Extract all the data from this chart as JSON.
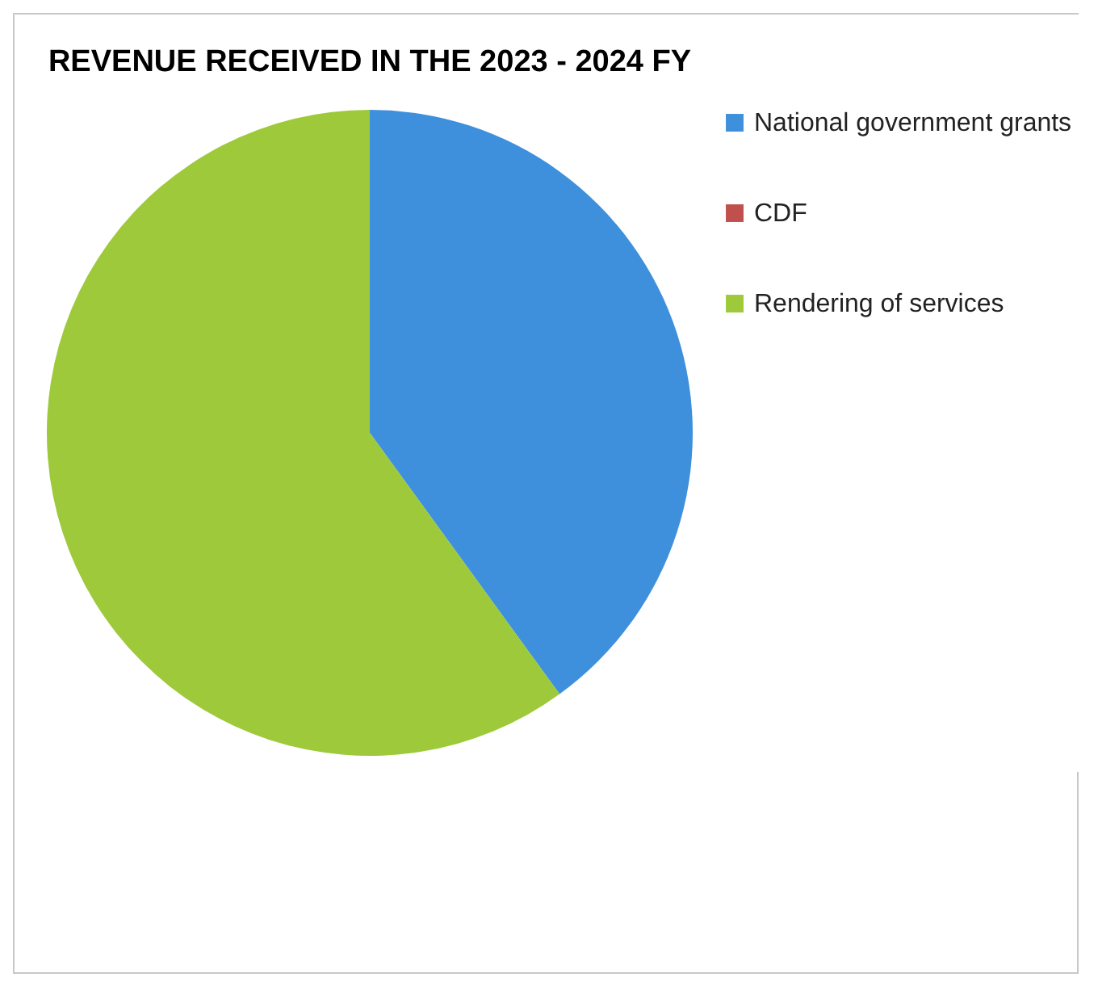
{
  "chart_data": {
    "type": "pie",
    "title": "REVENUE RECEIVED IN THE 2023 - 2024 FY",
    "categories": [
      "National government grants",
      "CDF",
      "Rendering of services"
    ],
    "values": [
      40,
      0,
      60
    ],
    "colors": [
      "#3e8fdc",
      "#c0504d",
      "#9dc93b"
    ],
    "legend": "right"
  }
}
